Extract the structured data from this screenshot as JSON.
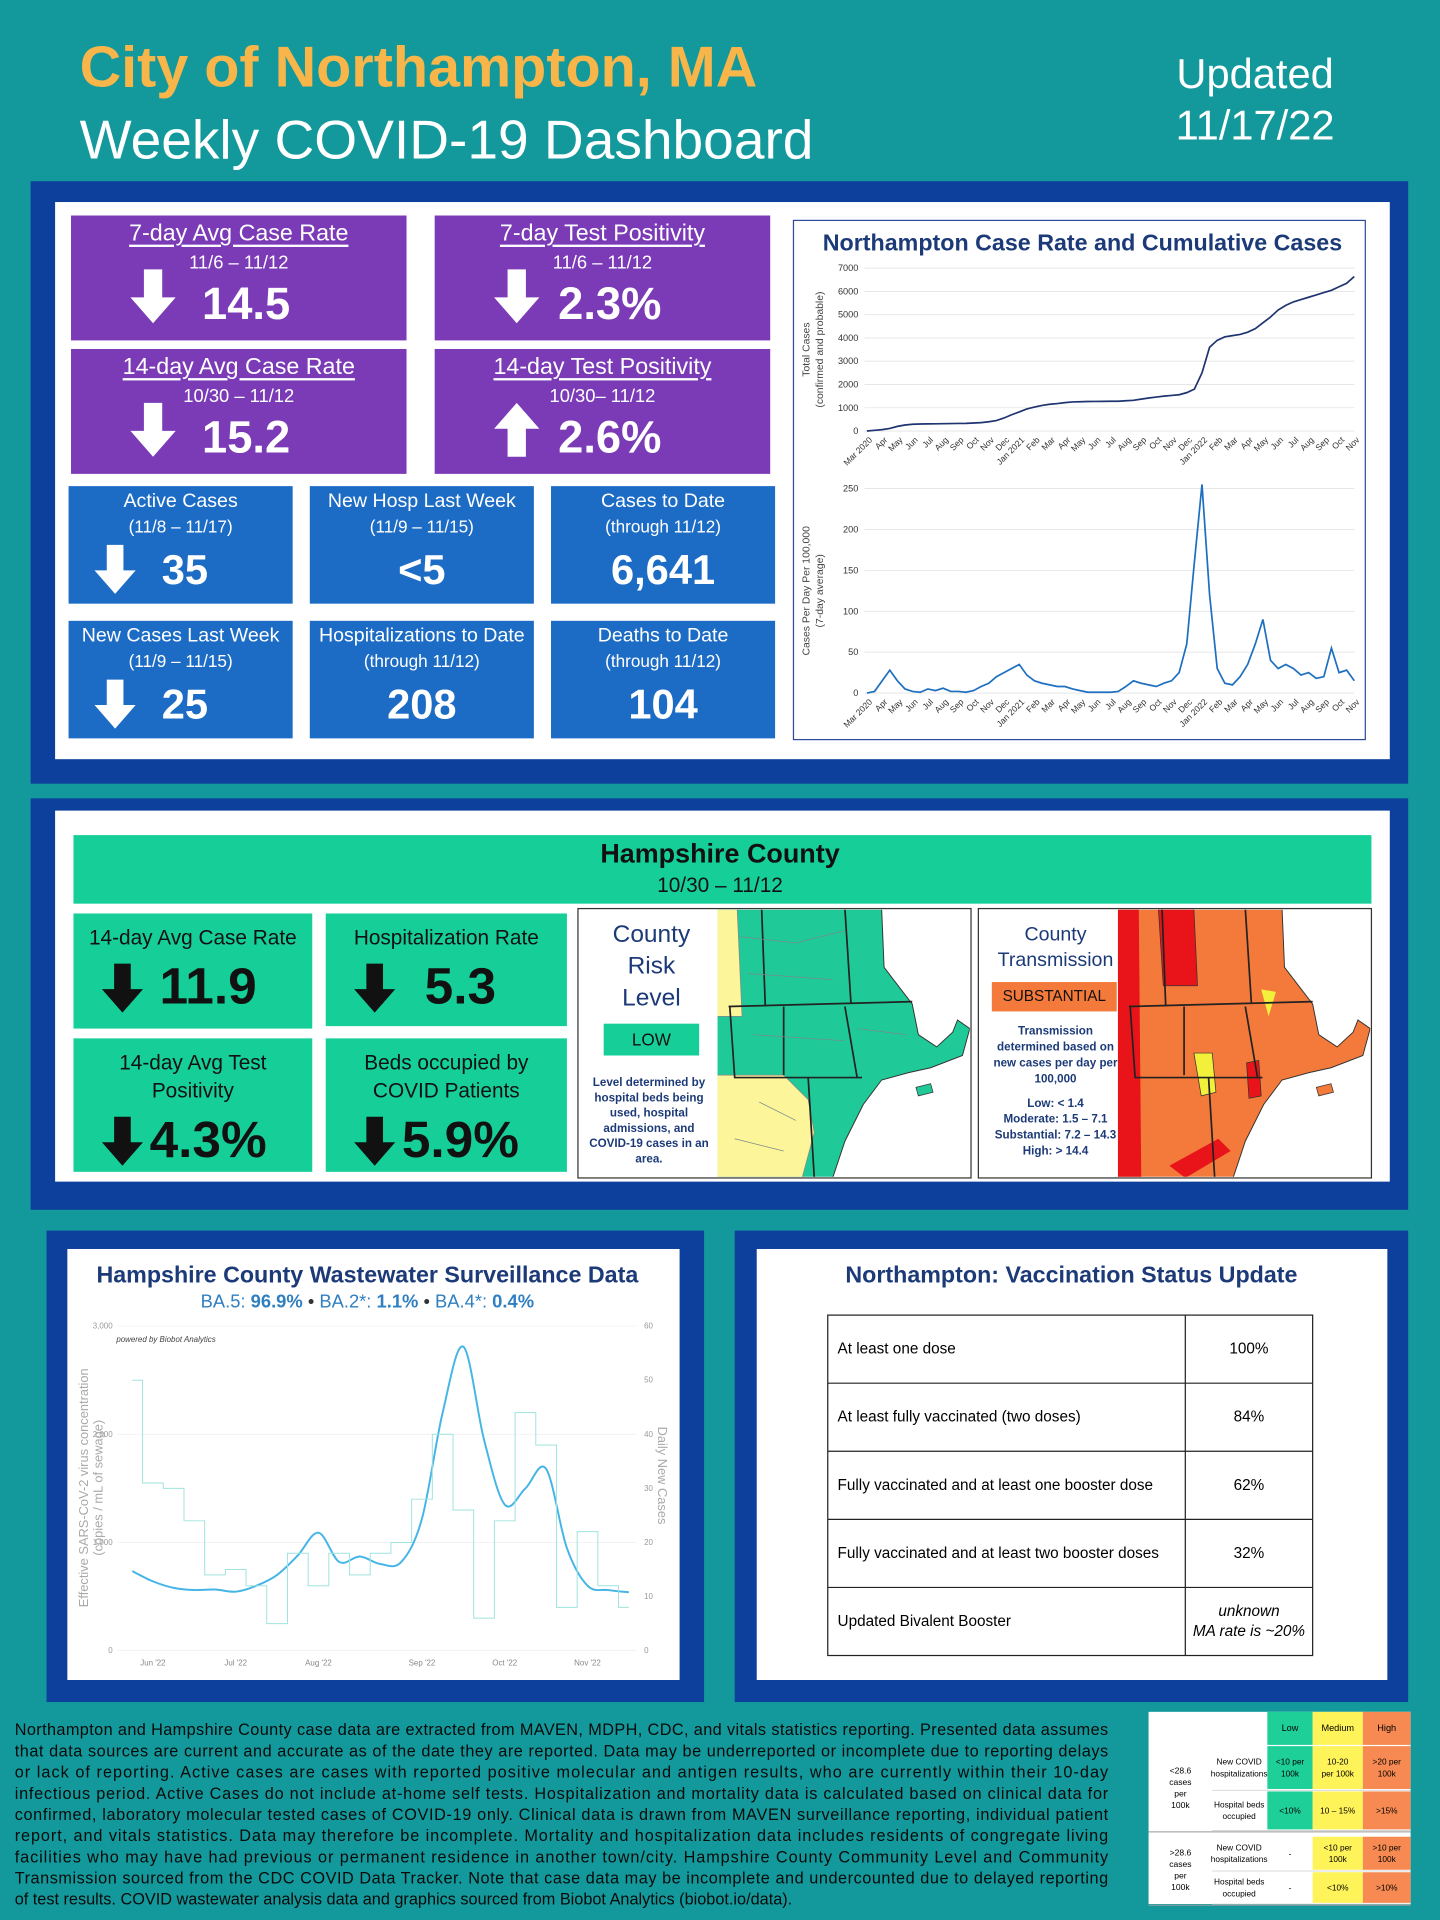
{
  "header": {
    "title": "City of Northampton, MA",
    "subtitle": "Weekly COVID-19 Dashboard",
    "updated": [
      "Updated",
      "11/17/22"
    ]
  },
  "city": {
    "featured": {
      "color": "#7b3bb7",
      "tiles": [
        {
          "title": "7-day Avg Case Rate",
          "period": "11/6 – 11/12",
          "trend": "down",
          "value": "14.5"
        },
        {
          "title": "7-day Test Positivity",
          "period": "11/6 – 11/12",
          "trend": "down",
          "value": "2.3%"
        },
        {
          "title": "14-day Avg Case Rate",
          "period": "10/30 – 11/12",
          "trend": "down",
          "value": "15.2"
        },
        {
          "title": "14-day Test Positivity",
          "period": "10/30– 11/12",
          "trend": "up",
          "value": "2.6%"
        }
      ]
    },
    "counts": {
      "color": "#1c6cc5",
      "tiles": [
        {
          "title": "Active Cases",
          "period": "(11/8 – 11/17)",
          "trend": "down",
          "value": "35"
        },
        {
          "title": "New Hosp Last Week",
          "period": "(11/9 – 11/15)",
          "value": "<5"
        },
        {
          "title": "Cases to Date",
          "period": "(through 11/12)",
          "value": "6,641"
        },
        {
          "title": "New Cases Last Week",
          "period": "(11/9 – 11/15)",
          "trend": "down",
          "value": "25"
        },
        {
          "title": "Hospitalizations to Date",
          "period": "(through 11/12)",
          "value": "208"
        },
        {
          "title": "Deaths to Date",
          "period": "(through 11/12)",
          "value": "104"
        }
      ]
    },
    "chart": {
      "title": "Northampton Case Rate and Cumulative Cases",
      "categories": [
        "Mar 2020",
        null,
        "Apr",
        null,
        "May",
        null,
        "Jun",
        null,
        "Jul",
        null,
        "Aug",
        null,
        "Sep",
        null,
        "Oct",
        null,
        "Nov",
        null,
        "Dec",
        null,
        "Jan 2021",
        null,
        "Feb",
        null,
        "Mar",
        null,
        "Apr",
        null,
        "May",
        null,
        "Jun",
        null,
        "Jul",
        null,
        "Aug",
        null,
        "Sep",
        null,
        "Oct",
        null,
        "Nov",
        null,
        "Dec",
        null,
        "Jan 2022",
        null,
        "Feb",
        null,
        "Mar",
        null,
        "Apr",
        null,
        "May",
        null,
        "Jun",
        null,
        "Jul",
        null,
        "Aug",
        null,
        "Sep",
        null,
        "Oct",
        null,
        "Nov"
      ],
      "panels": [
        {
          "type": "line",
          "ylabel": [
            "Total Cases",
            "(confirmed and probable)"
          ],
          "color": "#1f3470",
          "grid": true,
          "ylim": [
            0,
            7000
          ],
          "yticks": [
            0,
            1000,
            2000,
            3000,
            4000,
            5000,
            6000,
            7000
          ],
          "values": [
            0,
            30,
            60,
            110,
            200,
            260,
            290,
            300,
            305,
            310,
            315,
            320,
            325,
            330,
            345,
            360,
            400,
            450,
            560,
            700,
            820,
            950,
            1030,
            1100,
            1150,
            1180,
            1220,
            1250,
            1260,
            1270,
            1272,
            1275,
            1278,
            1280,
            1300,
            1320,
            1370,
            1420,
            1460,
            1500,
            1530,
            1560,
            1650,
            1800,
            2500,
            3600,
            3900,
            4050,
            4100,
            4150,
            4250,
            4400,
            4650,
            4900,
            5200,
            5400,
            5550,
            5650,
            5750,
            5850,
            5950,
            6050,
            6200,
            6350,
            6641
          ]
        },
        {
          "type": "line",
          "ylabel": [
            "Cases Per Day Per 100,000",
            "(7-day average)"
          ],
          "color": "#1f6fc0",
          "grid": true,
          "ylim": [
            0,
            250
          ],
          "yticks": [
            0,
            50,
            100,
            150,
            200,
            250
          ],
          "values": [
            0,
            2,
            15,
            28,
            15,
            5,
            2,
            1,
            5,
            3,
            6,
            2,
            2,
            1,
            3,
            8,
            12,
            20,
            25,
            30,
            35,
            22,
            15,
            12,
            10,
            8,
            8,
            5,
            3,
            1,
            1,
            1,
            1,
            2,
            8,
            15,
            12,
            10,
            8,
            12,
            15,
            25,
            60,
            160,
            255,
            120,
            30,
            12,
            10,
            20,
            35,
            60,
            90,
            40,
            30,
            35,
            30,
            22,
            25,
            18,
            20,
            55,
            25,
            28,
            15
          ]
        }
      ]
    }
  },
  "county": {
    "title": "Hampshire County",
    "period": "10/30 – 11/12",
    "color": "#16cf98",
    "tiles": [
      {
        "title": [
          "14-day Avg Case Rate"
        ],
        "trend": "down",
        "value": "11.9"
      },
      {
        "title": [
          "Hospitalization Rate"
        ],
        "trend": "down",
        "value": "5.3"
      },
      {
        "title": [
          "14-day Avg Test",
          "Positivity"
        ],
        "trend": "down",
        "value": "4.3%"
      },
      {
        "title": [
          "Beds occupied by",
          "COVID Patients"
        ],
        "trend": "down",
        "value": "5.9%"
      }
    ],
    "risk": {
      "title": [
        "County",
        "Risk",
        "Level"
      ],
      "level": "LOW",
      "color": "#16cf98",
      "note": [
        "Level determined by",
        "hospital beds being",
        "used, hospital",
        "admissions, and",
        "COVID-19 cases in an",
        "area."
      ]
    },
    "transmission": {
      "title": [
        "County",
        "Transmission"
      ],
      "level": "SUBSTANTIAL",
      "color": "#f47a3b",
      "note": [
        "Transmission",
        "determined based on",
        "new cases per day per",
        "100,000"
      ],
      "scale": [
        "Low: < 1.4",
        "Moderate: 1.5 – 7.1",
        "Substantial: 7.2 – 14.3",
        "High: > 14.4"
      ]
    }
  },
  "wastewater": {
    "type": "line",
    "title": "Hampshire County Wastewater Surveillance Data",
    "variants": [
      {
        "name": "BA.5:",
        "share": "96.9%"
      },
      {
        "name": "BA.2*:",
        "share": "1.1%"
      },
      {
        "name": "BA.4*:",
        "share": "0.4%"
      }
    ],
    "separator": "•",
    "credit": "powered by Biobot Analytics",
    "ylabel": [
      "Effective SARS-CoV-2 virus concentration",
      "(copies / mL of sewage)"
    ],
    "y2label": "Daily New Cases",
    "categories": [
      null,
      "Jun '22",
      null,
      null,
      null,
      "Jul '22",
      null,
      null,
      null,
      "Aug '22",
      null,
      null,
      null,
      null,
      "Sep '22",
      null,
      null,
      null,
      "Oct '22",
      null,
      null,
      null,
      "Nov '22",
      null,
      null
    ],
    "ylim": [
      0,
      3000
    ],
    "yticks": [
      0,
      {
        "value": 1000,
        "label": "1,000"
      },
      {
        "value": 2000,
        "label": "2,000"
      },
      {
        "value": 3000,
        "label": "3,000"
      }
    ],
    "y2lim": [
      0,
      60
    ],
    "y2ticks": [
      0,
      10,
      20,
      30,
      40,
      50,
      60
    ],
    "series": [
      {
        "color": "#45b4e6",
        "values": [
          735,
          640,
          580,
          560,
          565,
          545,
          600,
          700,
          880,
          1090,
          820,
          870,
          800,
          820,
          1220,
          2200,
          2810,
          1950,
          1350,
          1500,
          1680,
          950,
          600,
          560,
          540
        ]
      },
      {
        "color": "#9fe3de",
        "axis": "y2",
        "values": [
          50,
          31,
          30,
          24,
          14,
          15,
          12,
          5,
          18,
          12,
          18,
          14,
          18,
          20,
          28,
          40,
          26,
          6,
          24,
          44,
          38,
          8,
          22,
          12,
          8
        ]
      }
    ]
  },
  "vaccination": {
    "title": "Northampton: Vaccination Status Update",
    "rows": [
      [
        "At least one dose",
        "100%"
      ],
      [
        "At least fully vaccinated (two doses)",
        "84%"
      ],
      [
        "Fully vaccinated and at least one booster dose",
        "62%"
      ],
      [
        "Fully vaccinated and at least two booster doses",
        "32%"
      ],
      [
        "Updated Bivalent Booster",
        [
          "unknown",
          "MA rate is ~20%"
        ]
      ]
    ]
  },
  "footnote": [
    "Northampton and Hampshire County case data are extracted from MAVEN, MDPH, CDC, and vitals statistics reporting. Presented data assumes",
    "that data sources are current and accurate as of the date they are reported. Data may be underreported or incomplete due to reporting delays",
    "or lack of reporting. Active cases are cases with reported positive molecular and antigen results, who are currently within their 10-day",
    "infectious period. Active Cases do not include at-home self tests. Hospitalization and mortality data is calculated based on clinical data for",
    "confirmed, laboratory molecular tested cases of COVID-19 only. Clinical data is drawn from MAVEN surveillance reporting, individual patient",
    "report, and vitals statistics. Data may therefore be incomplete. Mortality and hospitalization data includes residents of congregate living",
    "facilities who may have had previous or permanent residence in another town/city. Hampshire County Community Level and Community",
    "Transmission sourced from the CDC COVID Data Tracker. Note that case data may be incomplete and undercounted due to delayed reporting",
    "of test results. COVID wastewater analysis data and graphics sourced from Biobot Analytics (biobot.io/data)."
  ],
  "levels_table": {
    "header": [
      "Low",
      "Medium",
      "High"
    ],
    "colors": [
      "#1ecf98",
      "#fff35a",
      "#f68a52"
    ],
    "groups": [
      {
        "label": [
          "<28.6",
          "cases",
          "per",
          "100k"
        ],
        "rows": [
          {
            "metric": [
              "New COVID",
              "hospitalizations"
            ],
            "cells": [
              [
                "<10 per",
                "100k"
              ],
              [
                "10-20",
                "per 100k"
              ],
              [
                ">20 per",
                "100k"
              ]
            ]
          },
          {
            "metric": [
              "Hospital beds",
              "occupied"
            ],
            "cells": [
              [
                "<10%"
              ],
              [
                "10 – 15%"
              ],
              [
                ">15%"
              ]
            ]
          }
        ]
      },
      {
        "label": [
          ">28.6",
          "cases",
          "per",
          "100k"
        ],
        "rows": [
          {
            "metric": [
              "New COVID",
              "hospitalizations"
            ],
            "cells": [
              [
                "-"
              ],
              [
                "<10 per",
                "100k"
              ],
              [
                ">10 per",
                "100k"
              ]
            ]
          },
          {
            "metric": [
              "Hospital beds",
              "occupied"
            ],
            "cells": [
              [
                "-"
              ],
              [
                "<10%"
              ],
              [
                ">10%"
              ]
            ]
          }
        ]
      }
    ]
  }
}
